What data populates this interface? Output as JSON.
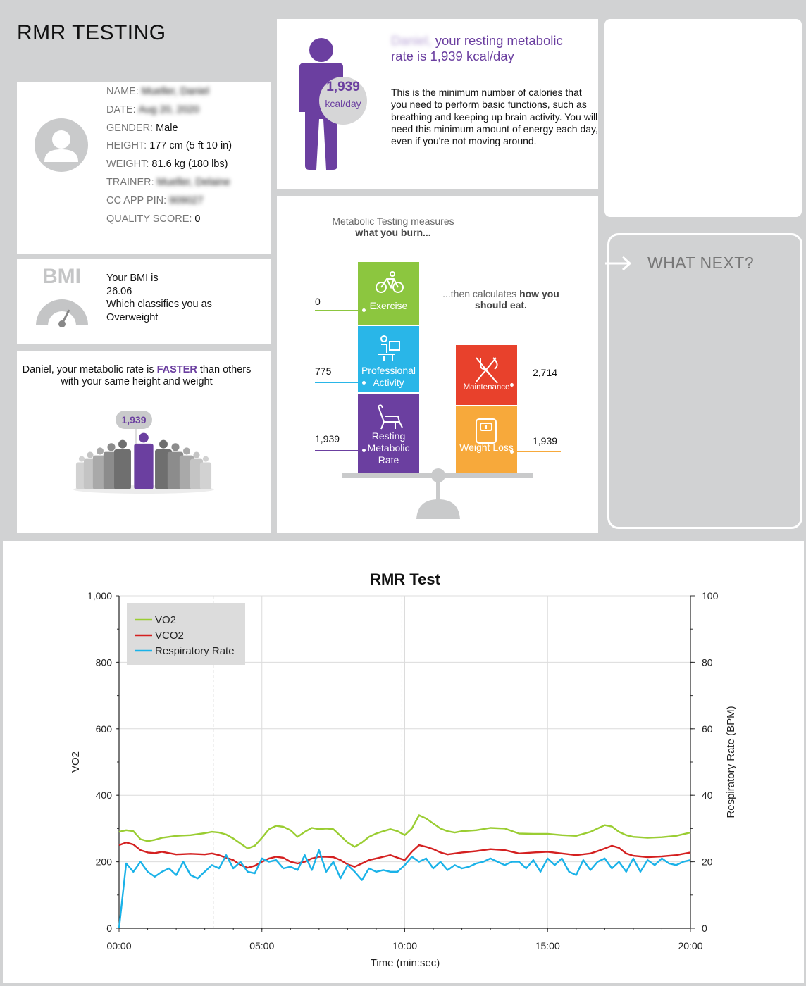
{
  "page_title": "RMR TESTING",
  "profile": {
    "fields": [
      {
        "label": "NAME:",
        "value": "Mueller, Daniel",
        "blurred": true
      },
      {
        "label": "DATE:",
        "value": "Aug 20, 2020",
        "blurred": true
      },
      {
        "label": "GENDER:",
        "value": "Male",
        "blurred": false
      },
      {
        "label": "HEIGHT:",
        "value": "177 cm (5 ft 10 in)",
        "blurred": false
      },
      {
        "label": "WEIGHT:",
        "value": "81.6 kg (180 lbs)",
        "blurred": false
      },
      {
        "label": "TRAINER:",
        "value": "Mueller, Delaine",
        "blurred": true
      },
      {
        "label": "CC APP PIN:",
        "value": "909027",
        "blurred": true
      },
      {
        "label": "QUALITY SCORE:",
        "value": "0",
        "blurred": false
      }
    ]
  },
  "bmi": {
    "logo": "BMI",
    "line1": "Your BMI is",
    "value": "26.06",
    "line3": "Which classifies you as",
    "classification": "Overweight"
  },
  "faster": {
    "text_pre": "Daniel, your metabolic rate is ",
    "highlight": "FASTER",
    "text_post": " than others with your same height and weight",
    "bubble": "1,939"
  },
  "rmr": {
    "name": "Daniel,",
    "headline": " your resting metabolic rate is 1,939 kcal/day",
    "badge_value": "1,939",
    "badge_unit": "kcal/day",
    "description": "This is the minimum number of calories that you need to perform basic functions, such as breathing and keeping up brain activity. You will need this minimum amount of energy each day, even if you're not moving around."
  },
  "what_next": {
    "label": "WHAT NEXT?"
  },
  "metabolic": {
    "title_pre": "Metabolic Testing measures ",
    "title_bold": "what you burn...",
    "sub_pre": "...then calculates ",
    "sub_bold": "how you should eat.",
    "left_blocks": [
      {
        "label": "Exercise",
        "value": "0",
        "color": "#8cc63f",
        "icon": "bicycle-icon"
      },
      {
        "label": "Professional Activity",
        "value": "775",
        "color": "#29b6e8",
        "icon": "desk-worker-icon"
      },
      {
        "label": "Resting Metabolic Rate",
        "value": "1,939",
        "color": "#6b3fa0",
        "icon": "recliner-icon"
      }
    ],
    "right_blocks": [
      {
        "label": "Maintenance",
        "value": "2,714",
        "color": "#e8412c",
        "icon": "fork-knife-icon"
      },
      {
        "label": "Weight Loss",
        "value": "1,939",
        "color": "#f7a93b",
        "icon": "scale-icon"
      }
    ]
  },
  "chart_data": {
    "type": "line",
    "title": "RMR Test",
    "xlabel": "Time (min:sec)",
    "ylabel": "VO2",
    "y2label": "Respiratory Rate (BPM)",
    "x_ticks": [
      "00:00",
      "05:00",
      "10:00",
      "15:00",
      "20:00"
    ],
    "xlim": [
      0,
      20
    ],
    "ylim": [
      0,
      1000
    ],
    "y_ticks": [
      "0",
      "200",
      "400",
      "600",
      "800",
      "1,000"
    ],
    "y2lim": [
      0,
      100
    ],
    "y2_ticks": [
      "0",
      "20",
      "40",
      "60",
      "80",
      "100"
    ],
    "legend_position": "top-left",
    "grid": true,
    "series": [
      {
        "name": "VO2",
        "axis": "left",
        "color": "#9acd32",
        "x": [
          0,
          0.25,
          0.5,
          0.75,
          1,
          1.25,
          1.5,
          2,
          2.5,
          3,
          3.25,
          3.5,
          3.75,
          4,
          4.25,
          4.5,
          4.75,
          5,
          5.25,
          5.5,
          5.75,
          6,
          6.25,
          6.5,
          6.75,
          7,
          7.25,
          7.5,
          7.75,
          8,
          8.25,
          8.5,
          8.75,
          9,
          9.25,
          9.5,
          9.75,
          10,
          10.25,
          10.5,
          10.75,
          11,
          11.25,
          11.5,
          11.75,
          12,
          12.5,
          13,
          13.5,
          14,
          14.5,
          15,
          15.5,
          16,
          16.5,
          16.75,
          17,
          17.25,
          17.5,
          17.75,
          18,
          18.5,
          19,
          19.5,
          20
        ],
        "y": [
          290,
          295,
          292,
          268,
          262,
          266,
          272,
          278,
          280,
          286,
          290,
          288,
          282,
          270,
          255,
          240,
          248,
          272,
          298,
          308,
          305,
          295,
          275,
          290,
          302,
          298,
          300,
          298,
          278,
          258,
          245,
          258,
          275,
          285,
          292,
          298,
          292,
          280,
          300,
          340,
          330,
          315,
          300,
          292,
          288,
          292,
          295,
          302,
          300,
          285,
          284,
          284,
          280,
          278,
          290,
          300,
          310,
          306,
          290,
          280,
          275,
          272,
          274,
          278,
          288
        ]
      },
      {
        "name": "VCO2",
        "axis": "left",
        "color": "#d42020",
        "x": [
          0,
          0.25,
          0.5,
          0.75,
          1,
          1.25,
          1.5,
          2,
          2.5,
          3,
          3.25,
          3.5,
          3.75,
          4,
          4.25,
          4.5,
          4.75,
          5,
          5.25,
          5.5,
          5.75,
          6,
          6.25,
          6.5,
          6.75,
          7,
          7.25,
          7.5,
          7.75,
          8,
          8.25,
          8.5,
          8.75,
          9,
          9.25,
          9.5,
          9.75,
          10,
          10.25,
          10.5,
          10.75,
          11,
          11.25,
          11.5,
          11.75,
          12,
          12.5,
          13,
          13.5,
          14,
          14.5,
          15,
          15.5,
          16,
          16.5,
          16.75,
          17,
          17.25,
          17.5,
          17.75,
          18,
          18.5,
          19,
          19.5,
          20
        ],
        "y": [
          250,
          258,
          252,
          235,
          228,
          226,
          230,
          222,
          224,
          222,
          225,
          220,
          212,
          205,
          190,
          182,
          188,
          200,
          210,
          215,
          212,
          200,
          195,
          200,
          210,
          215,
          215,
          214,
          205,
          192,
          185,
          195,
          205,
          210,
          215,
          220,
          212,
          205,
          230,
          250,
          245,
          238,
          228,
          222,
          225,
          228,
          232,
          238,
          235,
          225,
          228,
          230,
          225,
          220,
          225,
          232,
          240,
          248,
          242,
          225,
          218,
          214,
          216,
          220,
          228
        ]
      },
      {
        "name": "Respiratory Rate",
        "axis": "right",
        "color": "#1ab2e8",
        "x": [
          0,
          0.25,
          0.5,
          0.75,
          1,
          1.25,
          1.5,
          1.75,
          2,
          2.25,
          2.5,
          2.75,
          3,
          3.25,
          3.5,
          3.75,
          4,
          4.25,
          4.5,
          4.75,
          5,
          5.25,
          5.5,
          5.75,
          6,
          6.25,
          6.5,
          6.75,
          7,
          7.25,
          7.5,
          7.75,
          8,
          8.25,
          8.5,
          8.75,
          9,
          9.25,
          9.5,
          9.75,
          10,
          10.25,
          10.5,
          10.75,
          11,
          11.25,
          11.5,
          11.75,
          12,
          12.25,
          12.5,
          12.75,
          13,
          13.25,
          13.5,
          13.75,
          14,
          14.25,
          14.5,
          14.75,
          15,
          15.25,
          15.5,
          15.75,
          16,
          16.25,
          16.5,
          16.75,
          17,
          17.25,
          17.5,
          17.75,
          18,
          18.25,
          18.5,
          18.75,
          19,
          19.25,
          19.5,
          19.75,
          20
        ],
        "y": [
          0,
          19.5,
          17,
          20,
          17,
          15.5,
          17,
          18,
          16,
          20,
          16,
          15,
          17,
          19,
          18,
          22,
          18,
          20,
          17,
          16.5,
          21,
          20,
          20.5,
          18,
          18.5,
          17.5,
          22,
          17.5,
          23.5,
          17,
          20,
          15,
          19,
          17,
          14.5,
          18,
          17,
          17.5,
          17,
          17,
          19,
          21.5,
          20,
          21,
          18,
          20,
          17.5,
          19,
          18,
          18.5,
          19.5,
          20,
          21,
          20,
          19,
          20,
          20,
          18,
          20.5,
          17,
          21,
          19,
          21,
          17,
          16,
          20.5,
          17.5,
          20,
          21,
          18,
          20,
          17,
          21,
          17,
          20.5,
          19,
          21,
          19.5,
          19,
          20,
          20.5
        ]
      }
    ]
  }
}
